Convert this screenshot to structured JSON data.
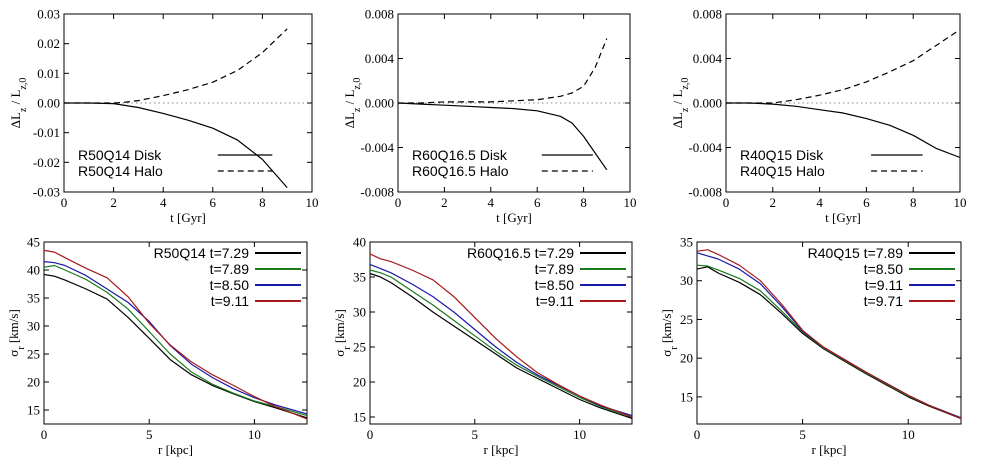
{
  "chart_data": [
    {
      "type": "line",
      "xlim": [
        0,
        10
      ],
      "ylim": [
        -0.03,
        0.03
      ],
      "xticks": [
        "0",
        "2",
        "4",
        "6",
        "8",
        "10"
      ],
      "yticks": [
        "-0.03",
        "-0.02",
        "-0.01",
        "0.00",
        "0.01",
        "0.02",
        "0.03"
      ],
      "xlabel": "t [Gyr]",
      "ylabel": "ΔL_z / L_z,0",
      "zero_line": true,
      "legend_position": "bottom-left",
      "series": [
        {
          "name": "R50Q14 Disk",
          "color": "#000000",
          "dash": "solid",
          "x": [
            0,
            1,
            2,
            3,
            4,
            5,
            6,
            7,
            8,
            9
          ],
          "y": [
            0,
            0,
            -0.0002,
            -0.0015,
            -0.0035,
            -0.0058,
            -0.0085,
            -0.0125,
            -0.019,
            -0.0285
          ]
        },
        {
          "name": "R50Q14 Halo",
          "color": "#000000",
          "dash": "dashed",
          "x": [
            0,
            1,
            2,
            2.5,
            3,
            4,
            5,
            6,
            7,
            8,
            9
          ],
          "y": [
            0,
            0,
            0,
            0.0003,
            0.0008,
            0.0025,
            0.0045,
            0.007,
            0.011,
            0.017,
            0.025
          ]
        }
      ]
    },
    {
      "type": "line",
      "xlim": [
        0,
        10
      ],
      "ylim": [
        -0.008,
        0.008
      ],
      "xticks": [
        "0",
        "2",
        "4",
        "6",
        "8",
        "10"
      ],
      "yticks": [
        "-0.008",
        "-0.004",
        "0.000",
        "0.004",
        "0.008"
      ],
      "xlabel": "t [Gyr]",
      "ylabel": "ΔL_z / L_z,0",
      "zero_line": true,
      "legend_position": "bottom-left",
      "series": [
        {
          "name": "R60Q16.5 Disk",
          "color": "#000000",
          "dash": "solid",
          "x": [
            0,
            1,
            2,
            3,
            4,
            5,
            6,
            7,
            7.5,
            8,
            8.5,
            9
          ],
          "y": [
            0,
            -0.0001,
            -0.0002,
            -0.0003,
            -0.0004,
            -0.0005,
            -0.0007,
            -0.0012,
            -0.0018,
            -0.003,
            -0.0045,
            -0.006
          ]
        },
        {
          "name": "R60Q16.5 Halo",
          "color": "#000000",
          "dash": "dashed",
          "x": [
            0,
            1,
            2,
            3,
            4,
            5,
            6,
            7,
            7.5,
            8,
            8.5,
            9
          ],
          "y": [
            0,
            0,
            0.0001,
            0.0001,
            0.0001,
            0.0002,
            0.0003,
            0.0006,
            0.0009,
            0.0015,
            0.0032,
            0.0058
          ]
        }
      ]
    },
    {
      "type": "line",
      "xlim": [
        0,
        10
      ],
      "ylim": [
        -0.008,
        0.008
      ],
      "xticks": [
        "0",
        "2",
        "4",
        "6",
        "8",
        "10"
      ],
      "yticks": [
        "-0.008",
        "-0.004",
        "0.000",
        "0.004",
        "0.008"
      ],
      "xlabel": "t [Gyr]",
      "ylabel": "ΔL_z / L_z,0",
      "zero_line": true,
      "legend_position": "bottom-left",
      "series": [
        {
          "name": "R40Q15 Disk",
          "color": "#000000",
          "dash": "solid",
          "x": [
            0,
            1,
            2,
            3,
            4,
            5,
            6,
            7,
            8,
            9,
            10
          ],
          "y": [
            0,
            0,
            -0.0001,
            -0.0003,
            -0.0006,
            -0.0009,
            -0.0014,
            -0.002,
            -0.0029,
            -0.0041,
            -0.0049
          ]
        },
        {
          "name": "R40Q15 Halo",
          "color": "#000000",
          "dash": "dashed",
          "x": [
            0,
            1,
            2,
            3,
            4,
            5,
            6,
            7,
            8,
            9,
            10
          ],
          "y": [
            0,
            0,
            0,
            0.0003,
            0.0007,
            0.0012,
            0.0019,
            0.0028,
            0.0038,
            0.0052,
            0.0066
          ]
        }
      ]
    },
    {
      "type": "line",
      "xlim": [
        0,
        12.5
      ],
      "ylim": [
        12.5,
        45
      ],
      "xticks": [
        "0",
        "5",
        "10"
      ],
      "xtick_values": [
        0,
        5,
        10
      ],
      "yticks": [
        "15",
        "20",
        "25",
        "30",
        "35",
        "40",
        "45"
      ],
      "ytick_values": [
        15,
        20,
        25,
        30,
        35,
        40,
        45
      ],
      "xlabel": "r [kpc]",
      "ylabel": "σ_r [km/s]",
      "legend_position": "top-right",
      "series": [
        {
          "name": "R50Q14 t=7.29",
          "color": "#000000",
          "x": [
            0,
            0.5,
            1,
            2,
            3,
            4,
            5,
            6,
            7,
            8,
            9,
            10,
            11,
            12.5
          ],
          "y": [
            39.2,
            38.9,
            38.2,
            36.6,
            34.8,
            31.5,
            27.8,
            24.0,
            21.3,
            19.4,
            17.9,
            16.5,
            15.4,
            13.6
          ]
        },
        {
          "name": "t=7.89",
          "color": "#1a7a1a",
          "x": [
            0,
            0.5,
            1,
            2,
            3,
            4,
            5,
            6,
            7,
            8,
            9,
            10,
            11,
            12.5
          ],
          "y": [
            40.5,
            40.8,
            40.0,
            38.3,
            36.0,
            33.0,
            29.0,
            25.0,
            21.8,
            19.6,
            18.0,
            16.6,
            15.6,
            14.0
          ]
        },
        {
          "name": "t=8.50",
          "color": "#1a1aa8",
          "x": [
            0,
            0.5,
            1,
            2,
            3,
            4,
            5,
            6,
            7,
            8,
            9,
            10,
            11,
            12.5
          ],
          "y": [
            41.5,
            41.3,
            40.8,
            39.0,
            36.6,
            34.2,
            30.8,
            26.5,
            23.2,
            20.8,
            18.8,
            17.2,
            15.9,
            14.3
          ]
        },
        {
          "name": "t=9.11",
          "color": "#a81a1a",
          "x": [
            0,
            0.5,
            1,
            2,
            3,
            4,
            5,
            6,
            7,
            8,
            9,
            10,
            11,
            12.5
          ],
          "y": [
            43.5,
            43.2,
            42.2,
            40.3,
            38.6,
            35.2,
            30.5,
            26.6,
            23.6,
            21.3,
            19.4,
            17.4,
            15.6,
            13.4
          ]
        }
      ]
    },
    {
      "type": "line",
      "xlim": [
        0,
        12.5
      ],
      "ylim": [
        14,
        40
      ],
      "xticks": [
        "0",
        "5",
        "10"
      ],
      "xtick_values": [
        0,
        5,
        10
      ],
      "yticks": [
        "15",
        "20",
        "25",
        "30",
        "35",
        "40"
      ],
      "ytick_values": [
        15,
        20,
        25,
        30,
        35,
        40
      ],
      "xlabel": "r [kpc]",
      "ylabel": "σ_r [km/s]",
      "legend_position": "top-right",
      "series": [
        {
          "name": "R60Q16.5 t=7.29",
          "color": "#000000",
          "x": [
            0,
            0.5,
            1,
            2,
            3,
            4,
            5,
            6,
            7,
            8,
            9,
            10,
            11,
            12.5
          ],
          "y": [
            35.5,
            35.0,
            34.2,
            32.2,
            30.0,
            28.0,
            26.0,
            24.0,
            22.0,
            20.5,
            19.0,
            17.5,
            16.3,
            14.8
          ]
        },
        {
          "name": "t=7.89",
          "color": "#1a7a1a",
          "x": [
            0,
            0.5,
            1,
            2,
            3,
            4,
            5,
            6,
            7,
            8,
            9,
            10,
            11,
            12.5
          ],
          "y": [
            36.0,
            35.6,
            35.0,
            33.0,
            31.0,
            28.8,
            26.6,
            24.4,
            22.4,
            20.8,
            19.3,
            17.8,
            16.5,
            15.0
          ]
        },
        {
          "name": "t=8.50",
          "color": "#1a1aa8",
          "x": [
            0,
            0.5,
            1,
            2,
            3,
            4,
            5,
            6,
            7,
            8,
            9,
            10,
            11,
            12.5
          ],
          "y": [
            36.8,
            36.2,
            35.6,
            34.0,
            32.2,
            30.0,
            27.5,
            25.0,
            22.8,
            21.0,
            19.5,
            18.0,
            16.6,
            15.2
          ]
        },
        {
          "name": "t=9.11",
          "color": "#a81a1a",
          "x": [
            0,
            0.5,
            1,
            2,
            3,
            4,
            5,
            6,
            7,
            8,
            9,
            10,
            11,
            12.5
          ],
          "y": [
            38.3,
            37.6,
            37.2,
            36.0,
            34.6,
            32.2,
            29.2,
            26.2,
            23.6,
            21.3,
            19.6,
            18.0,
            16.7,
            15.0
          ]
        }
      ]
    },
    {
      "type": "line",
      "xlim": [
        0,
        12.5
      ],
      "ylim": [
        11.5,
        35
      ],
      "xticks": [
        "0",
        "5",
        "10"
      ],
      "xtick_values": [
        0,
        5,
        10
      ],
      "yticks": [
        "15",
        "20",
        "25",
        "30",
        "35"
      ],
      "ytick_values": [
        15,
        20,
        25,
        30,
        35
      ],
      "xlabel": "r [kpc]",
      "ylabel": "σ_r [km/s]",
      "legend_position": "top-right",
      "series": [
        {
          "name": "R40Q15 t=7.89",
          "color": "#000000",
          "x": [
            0,
            0.5,
            1,
            2,
            3,
            4,
            5,
            6,
            7,
            8,
            9,
            10,
            11,
            12.5
          ],
          "y": [
            31.5,
            31.8,
            31.0,
            29.8,
            28.2,
            25.8,
            23.2,
            21.2,
            19.6,
            18.0,
            16.5,
            15.0,
            13.8,
            12.2
          ]
        },
        {
          "name": "t=8.50",
          "color": "#1a7a1a",
          "x": [
            0,
            0.5,
            1,
            2,
            3,
            4,
            5,
            6,
            7,
            8,
            9,
            10,
            11,
            12.5
          ],
          "y": [
            32.0,
            31.9,
            31.4,
            30.3,
            28.7,
            26.1,
            23.4,
            21.3,
            19.7,
            18.1,
            16.6,
            15.1,
            13.9,
            12.3
          ]
        },
        {
          "name": "t=9.11",
          "color": "#1a1aa8",
          "x": [
            0,
            0.5,
            1,
            2,
            3,
            4,
            5,
            6,
            7,
            8,
            9,
            10,
            11,
            12.5
          ],
          "y": [
            33.6,
            33.2,
            32.8,
            31.5,
            29.6,
            26.7,
            23.5,
            21.4,
            19.8,
            18.2,
            16.7,
            15.2,
            13.9,
            12.3
          ]
        },
        {
          "name": "t=9.71",
          "color": "#a81a1a",
          "x": [
            0,
            0.5,
            1,
            2,
            3,
            4,
            5,
            6,
            7,
            8,
            9,
            10,
            11,
            12.5
          ],
          "y": [
            33.8,
            34.0,
            33.4,
            32.0,
            30.0,
            27.0,
            23.6,
            21.4,
            19.8,
            18.2,
            16.7,
            15.2,
            13.9,
            12.2
          ]
        }
      ]
    }
  ]
}
